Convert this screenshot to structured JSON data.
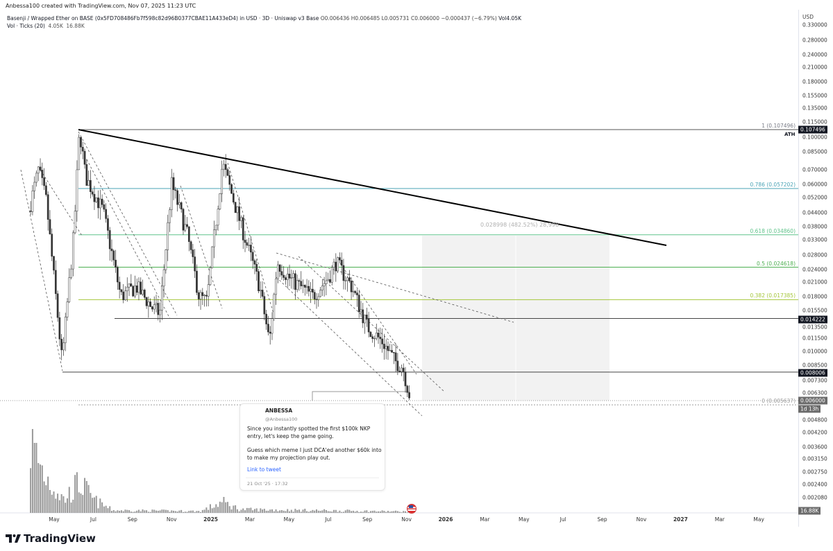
{
  "credit": "Anbessa100 created with TradingView.com, Nov 07, 2025 11:23 UTC",
  "legend": {
    "symbol": "Basenji / Wrapped Ether on BASE (0x5FD708486Fb7f598c82d96B0377CBAE11A433eD4) in USD · 3D · Uniswap v3 Base",
    "ohlc": "O0.006436  H0.006485  L0.005731  C0.006000  −0.000437 (−6.79%)",
    "vol_inline": "Vol",
    "vol_inline_value": "4.05K",
    "volume_label": "Vol · Ticks (20)",
    "volume_value1": "4.05K",
    "volume_value2": "16.88K"
  },
  "price_axis": {
    "unit": "USD",
    "ticks": [
      "0.330000",
      "0.280000",
      "0.240000",
      "0.210000",
      "0.180000",
      "0.155000",
      "0.135000",
      "0.115000",
      "0.100000",
      "0.085000",
      "0.070000",
      "0.060000",
      "0.052000",
      "0.044000",
      "0.038000",
      "0.033000",
      "0.028000",
      "0.024000",
      "0.021000",
      "0.018000",
      "0.015500",
      "0.013500",
      "0.011500",
      "0.010000",
      "0.008500",
      "0.007300",
      "0.006300",
      "0.004800",
      "0.004200",
      "0.003600",
      "0.003150",
      "0.002750",
      "0.002400",
      "0.002080"
    ],
    "tags": {
      "ath": "0.107496",
      "resistance": "0.014222",
      "support": "0.008006",
      "last_price": "0.006000",
      "countdown": "1d 13h",
      "volume": "16.88K"
    }
  },
  "time_axis": [
    {
      "label": "May",
      "month": 4
    },
    {
      "label": "Jul",
      "month": 6
    },
    {
      "label": "Sep",
      "month": 8
    },
    {
      "label": "Nov",
      "month": 10
    },
    {
      "label": "2025",
      "month": 12,
      "bold": true
    },
    {
      "label": "Mar",
      "month": 14
    },
    {
      "label": "May",
      "month": 16
    },
    {
      "label": "Jul",
      "month": 18
    },
    {
      "label": "Sep",
      "month": 20
    },
    {
      "label": "Nov",
      "month": 22
    },
    {
      "label": "2026",
      "month": 24,
      "bold": true
    },
    {
      "label": "Mar",
      "month": 26
    },
    {
      "label": "May",
      "month": 28
    },
    {
      "label": "Jul",
      "month": 30
    },
    {
      "label": "Sep",
      "month": 32
    },
    {
      "label": "Nov",
      "month": 34
    },
    {
      "label": "2027",
      "month": 36,
      "bold": true
    },
    {
      "label": "Mar",
      "month": 38
    },
    {
      "label": "May",
      "month": 40
    }
  ],
  "fib_levels": [
    {
      "label": "1 (0.107496)",
      "price": 0.107496,
      "color": "#787b86"
    },
    {
      "label": "0.786 (0.057202)",
      "price": 0.057202,
      "color": "#4aa3b5"
    },
    {
      "label": "0.618 (0.034860)",
      "price": 0.03486,
      "color": "#5fc38a"
    },
    {
      "label": "0.5 (0.024618)",
      "price": 0.024618,
      "color": "#4caf50"
    },
    {
      "label": "0.382 (0.017385)",
      "price": 0.017385,
      "color": "#a4c639"
    },
    {
      "label": "0 (0.005637)",
      "price": 0.005637,
      "color": "#9e9e9e"
    }
  ],
  "ath_label": "ATH",
  "horizontal_levels": [
    0.014222,
    0.008006
  ],
  "measure_label": "0.028998 (482.52%) 28,998",
  "chart_data": {
    "type": "candlestick",
    "scale": "log",
    "interval": "3D",
    "price_path": [
      {
        "month": 2.7,
        "price": 0.045
      },
      {
        "month": 3.2,
        "price": 0.07
      },
      {
        "month": 3.6,
        "price": 0.05
      },
      {
        "month": 4.2,
        "price": 0.014
      },
      {
        "month": 4.4,
        "price": 0.009
      },
      {
        "month": 5.0,
        "price": 0.035
      },
      {
        "month": 5.3,
        "price": 0.1075
      },
      {
        "month": 5.6,
        "price": 0.065
      },
      {
        "month": 6.5,
        "price": 0.045
      },
      {
        "month": 7.4,
        "price": 0.018
      },
      {
        "month": 8.2,
        "price": 0.02
      },
      {
        "month": 9.0,
        "price": 0.016
      },
      {
        "month": 9.4,
        "price": 0.015
      },
      {
        "month": 10.0,
        "price": 0.06
      },
      {
        "month": 10.8,
        "price": 0.035
      },
      {
        "month": 11.4,
        "price": 0.018
      },
      {
        "month": 11.8,
        "price": 0.017
      },
      {
        "month": 12.6,
        "price": 0.075
      },
      {
        "month": 13.5,
        "price": 0.04
      },
      {
        "month": 14.5,
        "price": 0.02
      },
      {
        "month": 15.0,
        "price": 0.011
      },
      {
        "month": 15.4,
        "price": 0.026
      },
      {
        "month": 16.0,
        "price": 0.022
      },
      {
        "month": 17.2,
        "price": 0.018
      },
      {
        "month": 18.0,
        "price": 0.022
      },
      {
        "month": 18.4,
        "price": 0.026
      },
      {
        "month": 19.2,
        "price": 0.02
      },
      {
        "month": 20.0,
        "price": 0.013
      },
      {
        "month": 20.8,
        "price": 0.011
      },
      {
        "month": 21.4,
        "price": 0.009
      },
      {
        "month": 21.8,
        "price": 0.0085
      },
      {
        "month": 22.2,
        "price": 0.006
      }
    ],
    "volume_path_k": [
      {
        "month": 2.7,
        "vol": 16.88
      },
      {
        "month": 3.5,
        "vol": 9
      },
      {
        "month": 4.5,
        "vol": 3
      },
      {
        "month": 5.3,
        "vol": 7
      },
      {
        "month": 6.0,
        "vol": 3
      },
      {
        "month": 7.0,
        "vol": 0.6
      },
      {
        "month": 11.5,
        "vol": 0.4
      },
      {
        "month": 12.6,
        "vol": 2.5
      },
      {
        "month": 13.5,
        "vol": 0.8
      },
      {
        "month": 22.2,
        "vol": 0.3
      }
    ]
  },
  "tweet": {
    "name": "ANBESSA",
    "handle": "@Anbessa100",
    "paragraph1": "Since you instantly spotted the first $100k NKP entry, let's keep the game going.",
    "paragraph2": "Guess which meme I just DCA'ed another $60k into to make my projection play out.",
    "link": "Link to tweet",
    "date": "21 Oct '25 · 17:32"
  },
  "brand": "TradingView"
}
